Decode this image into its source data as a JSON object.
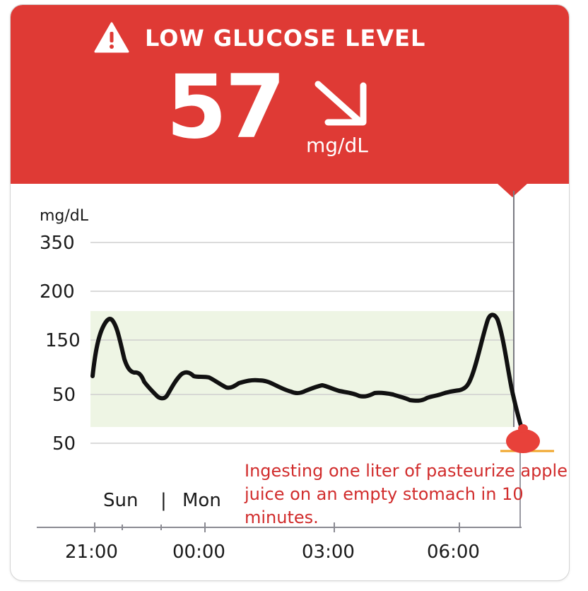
{
  "alert": {
    "title": "LOW GLUCOSE LEVEL",
    "value": "57",
    "unit": "mg/dL",
    "trend_icon": "arrow-down-right-icon",
    "warning_icon": "warning-triangle-icon",
    "color": "#df3a35"
  },
  "chart_data": {
    "type": "line",
    "ylabel": "mg/dL",
    "y_tick_labels": [
      "350",
      "200",
      "150",
      "50",
      "50"
    ],
    "x_tick_labels": [
      "21:00",
      "00:00",
      "03:00",
      "06:00"
    ],
    "day_labels": {
      "left": "Sun",
      "separator": "|",
      "right": "Mon"
    },
    "target_range_color": "#eef5e4",
    "line_color": "#111111",
    "marker_color": "#e8413a"
  },
  "annotation": {
    "text": "Ingesting one liter of pasteurize apple juice on an empty stomach in 10 minutes."
  }
}
